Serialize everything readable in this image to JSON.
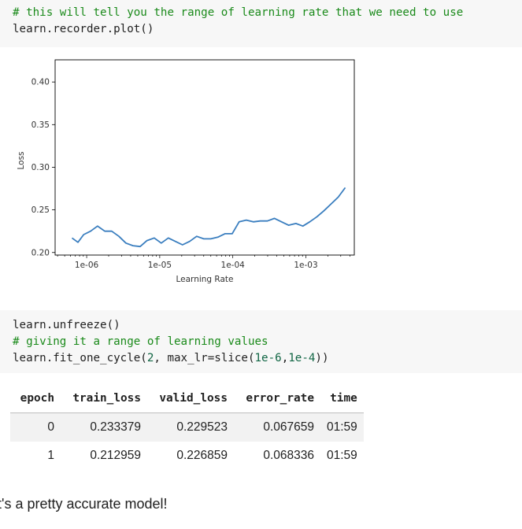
{
  "cell1": {
    "comment": "# this will tell you the range of learning rate that we need to use",
    "code": "learn.recorder.plot()"
  },
  "chart_data": {
    "type": "line",
    "xlabel": "Learning Rate",
    "ylabel": "Loss",
    "x_scale": "log",
    "xlim": [
      3.7e-07,
      0.0046
    ],
    "ylim": [
      0.197,
      0.426
    ],
    "x_ticks": [
      1e-06,
      1e-05,
      0.0001,
      0.001
    ],
    "x_tick_labels": [
      "1e-06",
      "1e-05",
      "1e-04",
      "1e-03"
    ],
    "y_ticks": [
      0.2,
      0.25,
      0.3,
      0.35,
      0.4
    ],
    "y_tick_labels": [
      "0.20",
      "0.25",
      "0.30",
      "0.35",
      "0.40"
    ],
    "grid": false,
    "series": [
      {
        "color": "#3a7ebf",
        "x": [
          6.3e-07,
          7.6e-07,
          9.1e-07,
          1.13e-06,
          1.41e-06,
          1.77e-06,
          2.2e-06,
          2.76e-06,
          3.44e-06,
          4.3e-06,
          5.4e-06,
          6.7e-06,
          8.4e-06,
          1.05e-05,
          1.31e-05,
          1.64e-05,
          2.05e-05,
          2.56e-05,
          3.2e-05,
          4e-05,
          5e-05,
          6.25e-05,
          7.8e-05,
          9.8e-05,
          0.000122,
          0.000153,
          0.000191,
          0.000238,
          0.000298,
          0.000372,
          0.000465,
          0.00058,
          0.00073,
          0.00091,
          0.00113,
          0.00142,
          0.00177,
          0.00222,
          0.00277,
          0.00346
        ],
        "y": [
          0.217,
          0.212,
          0.221,
          0.225,
          0.231,
          0.225,
          0.225,
          0.219,
          0.211,
          0.208,
          0.207,
          0.214,
          0.217,
          0.211,
          0.217,
          0.213,
          0.209,
          0.213,
          0.219,
          0.216,
          0.216,
          0.218,
          0.222,
          0.222,
          0.236,
          0.238,
          0.236,
          0.237,
          0.237,
          0.24,
          0.236,
          0.232,
          0.234,
          0.231,
          0.236,
          0.242,
          0.249,
          0.257,
          0.265,
          0.276
        ]
      }
    ]
  },
  "cell2": {
    "line1": "learn.unfreeze()",
    "line2_comment": "# giving it a range of learning values",
    "line3_pre": "learn.fit_one_cycle(",
    "line3_num1": "2",
    "line3_mid": ", max_lr=slice(",
    "line3_num2": "1e-6",
    "line3_sep": ",",
    "line3_num3": "1e-4",
    "line3_post": "))"
  },
  "results_table": {
    "headers": [
      "epoch",
      "train_loss",
      "valid_loss",
      "error_rate",
      "time"
    ],
    "rows": [
      [
        "0",
        "0.233379",
        "0.229523",
        "0.067659",
        "01:59"
      ],
      [
        "1",
        "0.212959",
        "0.226859",
        "0.068336",
        "01:59"
      ]
    ]
  },
  "footer": {
    "text": "t's a pretty accurate model!"
  }
}
